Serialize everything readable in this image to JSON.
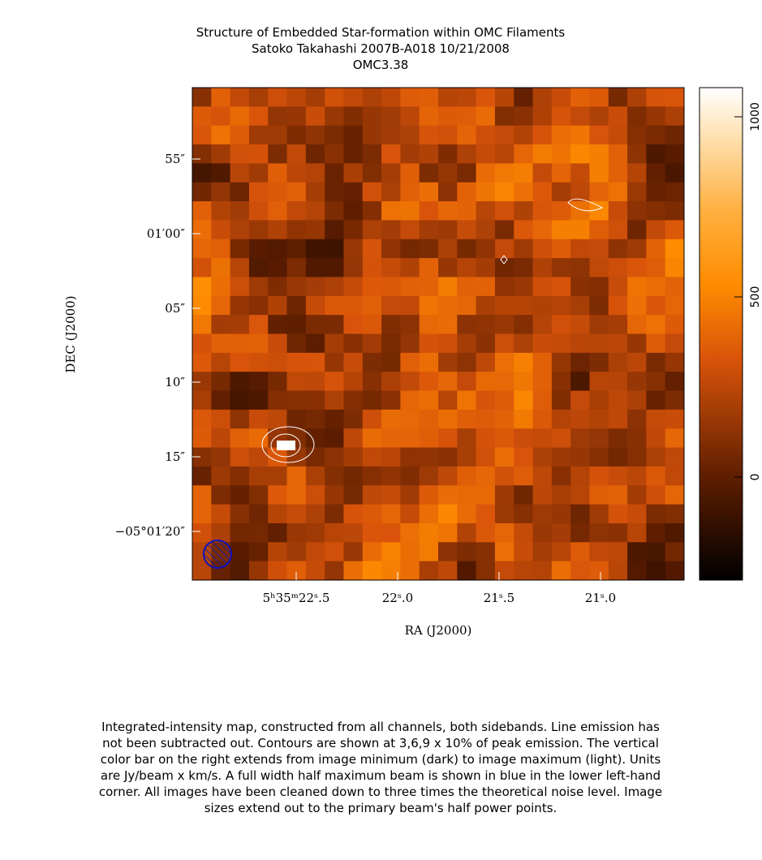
{
  "figure": {
    "title": [
      "Structure of Embedded Star-formation within OMC Filaments",
      "Satoko Takahashi   2007B-A018   10/21/2008",
      "OMC3.38"
    ],
    "ylabel": "DEC (J2000)",
    "xlabel": "RA (J2000)",
    "yticks": [
      "55″",
      "01′00″",
      "05″",
      "10″",
      "15″",
      "−05°01′20″"
    ],
    "xticks": [
      "5ʰ35ᵐ22ˢ.5",
      "22ˢ.0",
      "21ˢ.5",
      "21ˢ.0"
    ],
    "colorbar": {
      "lim": [
        -286,
        1081
      ],
      "ticks": [
        0,
        500,
        1000
      ]
    }
  },
  "caption": [
    "Integrated-intensity map, constructed from all channels, both sidebands.  Line emission has",
    "not been subtracted out.  Contours are shown at 3,6,9 x 10% of peak emission.  The vertical",
    "color bar on the right extends from image minimum (dark) to image maximum (light).  Units",
    "are Jy/beam x km/s.  A full width half maximum beam is shown in blue in the lower left-hand",
    "corner.  All images have been cleaned down to three times the theoretical noise level.  Image",
    "sizes extend out to the primary beam's half power points."
  ]
}
